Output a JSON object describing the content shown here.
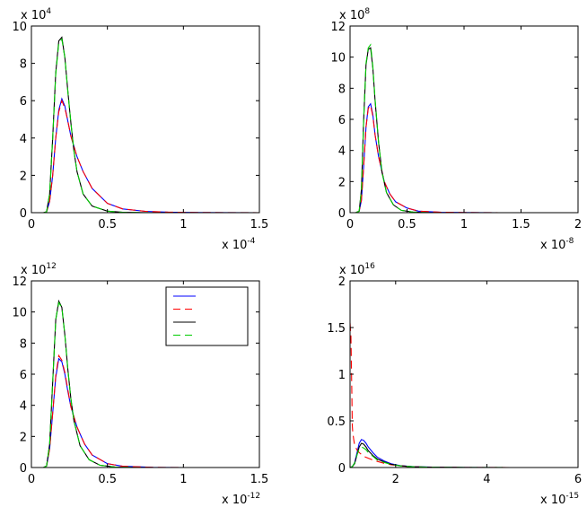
{
  "chart_data": [
    {
      "type": "line",
      "xlim": [
        0,
        1.5
      ],
      "ylim": [
        0,
        10
      ],
      "x_ticks": [
        "0",
        "0.5",
        "1",
        "1.5"
      ],
      "y_ticks": [
        "0",
        "2",
        "4",
        "6",
        "8",
        "10"
      ],
      "x_multiplier": "x 10",
      "x_exponent": "-4",
      "y_multiplier": "x 10",
      "y_exponent": "4",
      "grid": false,
      "series": [
        {
          "color": "#0000ff",
          "dash": "solid",
          "x": [
            0.08,
            0.1,
            0.12,
            0.14,
            0.16,
            0.18,
            0.2,
            0.22,
            0.24,
            0.26,
            0.3,
            0.34,
            0.4,
            0.5,
            0.6,
            0.75,
            0.9,
            1.1,
            1.3,
            1.5
          ],
          "y": [
            0,
            0.05,
            0.6,
            2.0,
            4.0,
            5.5,
            6.1,
            5.7,
            4.9,
            4.1,
            3.0,
            2.2,
            1.3,
            0.5,
            0.2,
            0.07,
            0.03,
            0.01,
            0.005,
            0
          ]
        },
        {
          "color": "#ff0000",
          "dash": "dashed",
          "x": [
            0.08,
            0.1,
            0.12,
            0.14,
            0.16,
            0.18,
            0.2,
            0.22,
            0.24,
            0.26,
            0.3,
            0.34,
            0.4,
            0.5,
            0.6,
            0.75,
            0.9,
            1.1,
            1.3,
            1.5
          ],
          "y": [
            0,
            0.05,
            0.6,
            2.0,
            4.0,
            5.4,
            6.0,
            5.6,
            4.9,
            4.1,
            3.0,
            2.2,
            1.3,
            0.5,
            0.2,
            0.07,
            0.03,
            0.01,
            0.005,
            0
          ]
        },
        {
          "color": "#000000",
          "dash": "solid",
          "x": [
            0.08,
            0.1,
            0.12,
            0.14,
            0.16,
            0.18,
            0.2,
            0.22,
            0.24,
            0.26,
            0.28,
            0.3,
            0.34,
            0.4,
            0.5,
            0.6,
            0.8,
            1.0,
            1.5
          ],
          "y": [
            0,
            0.05,
            1.0,
            4.0,
            7.5,
            9.2,
            9.4,
            8.3,
            6.5,
            4.8,
            3.3,
            2.2,
            1.0,
            0.35,
            0.08,
            0.02,
            0,
            0,
            0
          ]
        },
        {
          "color": "#00cc00",
          "dash": "dashed",
          "x": [
            0.08,
            0.1,
            0.12,
            0.14,
            0.16,
            0.18,
            0.2,
            0.22,
            0.24,
            0.26,
            0.28,
            0.3,
            0.34,
            0.4,
            0.5,
            0.6,
            0.8,
            1.0,
            1.5
          ],
          "y": [
            0,
            0.05,
            1.0,
            4.0,
            7.4,
            9.1,
            9.3,
            8.3,
            6.5,
            4.8,
            3.3,
            2.2,
            1.0,
            0.35,
            0.08,
            0.02,
            0,
            0,
            0
          ]
        }
      ]
    },
    {
      "type": "line",
      "xlim": [
        0,
        2
      ],
      "ylim": [
        0,
        12
      ],
      "x_ticks": [
        "0",
        "0.5",
        "1",
        "1.5",
        "2"
      ],
      "y_ticks": [
        "0",
        "2",
        "4",
        "6",
        "8",
        "10",
        "12"
      ],
      "x_multiplier": "x 10",
      "x_exponent": "-8",
      "y_multiplier": "x 10",
      "y_exponent": "8",
      "grid": false,
      "series": [
        {
          "color": "#0000ff",
          "dash": "solid",
          "x": [
            0.05,
            0.08,
            0.1,
            0.12,
            0.14,
            0.16,
            0.18,
            0.2,
            0.22,
            0.25,
            0.3,
            0.35,
            0.4,
            0.5,
            0.6,
            0.8,
            1.0,
            1.3,
            2.0
          ],
          "y": [
            0,
            0.1,
            0.8,
            3.0,
            5.5,
            6.8,
            7.0,
            6.3,
            5.0,
            3.6,
            2.0,
            1.2,
            0.7,
            0.3,
            0.1,
            0.03,
            0.01,
            0,
            0
          ]
        },
        {
          "color": "#ff0000",
          "dash": "dashed",
          "x": [
            0.05,
            0.08,
            0.1,
            0.12,
            0.14,
            0.16,
            0.18,
            0.2,
            0.22,
            0.25,
            0.3,
            0.35,
            0.4,
            0.5,
            0.6,
            0.8,
            1.0,
            1.3,
            2.0
          ],
          "y": [
            0,
            0.1,
            0.8,
            3.0,
            5.5,
            6.7,
            6.9,
            6.2,
            5.0,
            3.6,
            2.0,
            1.2,
            0.7,
            0.3,
            0.1,
            0.03,
            0.01,
            0,
            0
          ]
        },
        {
          "color": "#000000",
          "dash": "solid",
          "x": [
            0.05,
            0.08,
            0.1,
            0.12,
            0.14,
            0.16,
            0.18,
            0.2,
            0.22,
            0.25,
            0.28,
            0.32,
            0.38,
            0.45,
            0.55,
            0.7,
            1.0,
            2.0
          ],
          "y": [
            0,
            0.1,
            1.5,
            6.0,
            9.5,
            10.5,
            10.6,
            9.3,
            7.2,
            4.5,
            2.6,
            1.3,
            0.5,
            0.15,
            0.04,
            0,
            0,
            0
          ]
        },
        {
          "color": "#00cc00",
          "dash": "dashed",
          "x": [
            0.05,
            0.08,
            0.1,
            0.12,
            0.14,
            0.16,
            0.18,
            0.2,
            0.22,
            0.25,
            0.28,
            0.32,
            0.38,
            0.45,
            0.55,
            0.7,
            1.0,
            2.0
          ],
          "y": [
            0,
            0.1,
            1.5,
            6.0,
            9.6,
            10.6,
            10.8,
            9.4,
            7.3,
            4.5,
            2.6,
            1.3,
            0.5,
            0.15,
            0.04,
            0,
            0,
            0
          ]
        }
      ]
    },
    {
      "type": "line",
      "xlim": [
        0,
        1.5
      ],
      "ylim": [
        0,
        12
      ],
      "x_ticks": [
        "0",
        "0.5",
        "1",
        "1.5"
      ],
      "y_ticks": [
        "0",
        "2",
        "4",
        "6",
        "8",
        "10",
        "12"
      ],
      "x_multiplier": "x 10",
      "x_exponent": "-12",
      "y_multiplier": "x 10",
      "y_exponent": "12",
      "grid": false,
      "legend": {
        "placement": "top-right",
        "entries": 4
      },
      "series": [
        {
          "color": "#0000ff",
          "dash": "solid",
          "x": [
            0.08,
            0.1,
            0.12,
            0.14,
            0.16,
            0.18,
            0.2,
            0.22,
            0.24,
            0.26,
            0.3,
            0.35,
            0.4,
            0.5,
            0.6,
            0.8,
            1.0,
            1.5
          ],
          "y": [
            0,
            0.1,
            1.2,
            3.5,
            5.8,
            7.0,
            6.8,
            6.0,
            4.9,
            3.9,
            2.6,
            1.5,
            0.8,
            0.25,
            0.08,
            0.01,
            0,
            0
          ]
        },
        {
          "color": "#ff0000",
          "dash": "dashed",
          "x": [
            0.08,
            0.1,
            0.12,
            0.14,
            0.16,
            0.18,
            0.2,
            0.22,
            0.24,
            0.26,
            0.3,
            0.35,
            0.4,
            0.5,
            0.6,
            0.8,
            1.0,
            1.5
          ],
          "y": [
            0,
            0.1,
            1.2,
            3.5,
            5.9,
            7.2,
            6.9,
            6.1,
            5.0,
            3.9,
            2.6,
            1.5,
            0.8,
            0.25,
            0.08,
            0.01,
            0,
            0
          ]
        },
        {
          "color": "#000000",
          "dash": "solid",
          "x": [
            0.08,
            0.1,
            0.12,
            0.14,
            0.16,
            0.18,
            0.2,
            0.22,
            0.24,
            0.26,
            0.28,
            0.32,
            0.38,
            0.45,
            0.55,
            0.7,
            1.0,
            1.5
          ],
          "y": [
            0,
            0.1,
            1.5,
            5.5,
            9.5,
            10.7,
            10.3,
            8.5,
            6.3,
            4.4,
            3.0,
            1.4,
            0.5,
            0.15,
            0.03,
            0,
            0,
            0
          ]
        },
        {
          "color": "#00cc00",
          "dash": "dashed",
          "x": [
            0.08,
            0.1,
            0.12,
            0.14,
            0.16,
            0.18,
            0.2,
            0.22,
            0.24,
            0.26,
            0.28,
            0.32,
            0.38,
            0.45,
            0.55,
            0.7,
            1.0,
            1.5
          ],
          "y": [
            0,
            0.1,
            1.5,
            5.5,
            9.5,
            10.6,
            10.3,
            8.5,
            6.3,
            4.4,
            3.0,
            1.4,
            0.5,
            0.15,
            0.03,
            0,
            0,
            0
          ]
        }
      ]
    },
    {
      "type": "line",
      "xlim": [
        1,
        6
      ],
      "ylim": [
        0,
        2
      ],
      "x_ticks": [
        "2",
        "4",
        "6"
      ],
      "x_tick_values": [
        2,
        4,
        6
      ],
      "y_ticks": [
        "0",
        "0.5",
        "1",
        "1.5",
        "2"
      ],
      "x_multiplier": "x 10",
      "x_exponent": "-15",
      "y_multiplier": "x 10",
      "y_exponent": "16",
      "grid": false,
      "series": [
        {
          "color": "#0000ff",
          "dash": "solid",
          "x": [
            1.0,
            1.05,
            1.1,
            1.15,
            1.2,
            1.25,
            1.3,
            1.35,
            1.4,
            1.5,
            1.6,
            1.75,
            1.9,
            2.1,
            2.4,
            2.8,
            3.5,
            4.5,
            6.0
          ],
          "y": [
            0,
            0.01,
            0.05,
            0.15,
            0.26,
            0.3,
            0.29,
            0.26,
            0.22,
            0.16,
            0.11,
            0.07,
            0.04,
            0.02,
            0.01,
            0.004,
            0.001,
            0,
            0
          ]
        },
        {
          "color": "#ff0000",
          "dash": "dashed",
          "x": [
            1.0,
            1.02,
            1.04,
            1.05,
            1.06,
            1.08,
            1.1,
            1.15,
            1.2,
            1.3,
            1.4,
            1.5,
            1.6,
            1.75,
            1.9,
            2.1,
            2.4,
            2.8,
            3.5,
            4.5,
            6.0
          ],
          "y": [
            1.55,
            1.4,
            0.8,
            0.45,
            0.38,
            0.3,
            0.24,
            0.19,
            0.16,
            0.12,
            0.1,
            0.08,
            0.065,
            0.045,
            0.03,
            0.018,
            0.008,
            0.003,
            0.001,
            0,
            0
          ]
        },
        {
          "color": "#000000",
          "dash": "solid",
          "x": [
            1.0,
            1.05,
            1.1,
            1.15,
            1.2,
            1.25,
            1.3,
            1.35,
            1.4,
            1.5,
            1.6,
            1.75,
            1.9,
            2.1,
            2.4,
            2.8,
            3.5,
            4.5,
            6.0
          ],
          "y": [
            0,
            0.01,
            0.04,
            0.13,
            0.22,
            0.26,
            0.25,
            0.22,
            0.18,
            0.13,
            0.09,
            0.06,
            0.035,
            0.018,
            0.008,
            0.003,
            0.001,
            0,
            0
          ]
        },
        {
          "color": "#00cc00",
          "dash": "dashed",
          "x": [
            1.0,
            1.05,
            1.1,
            1.15,
            1.2,
            1.25,
            1.3,
            1.35,
            1.4,
            1.5,
            1.6,
            1.75,
            1.9,
            2.1,
            2.4,
            2.8,
            3.5,
            4.5,
            6.0
          ],
          "y": [
            0,
            0.01,
            0.05,
            0.13,
            0.2,
            0.22,
            0.21,
            0.19,
            0.16,
            0.12,
            0.08,
            0.055,
            0.033,
            0.017,
            0.008,
            0.003,
            0.001,
            0,
            0
          ]
        }
      ]
    }
  ]
}
